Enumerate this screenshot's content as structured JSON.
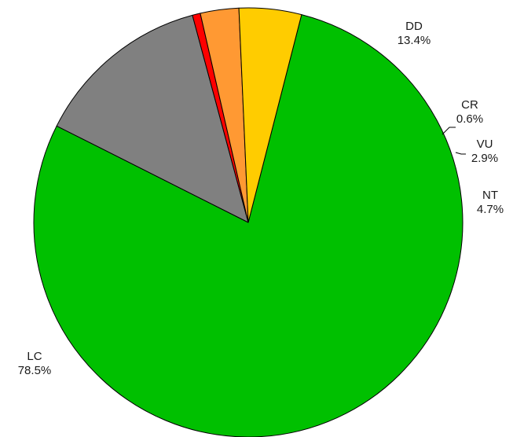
{
  "chart_data": {
    "type": "pie",
    "slices": [
      {
        "label": "LC",
        "value": 78.5,
        "value_label": "78.5%",
        "color": "#00c000"
      },
      {
        "label": "DD",
        "value": 13.4,
        "value_label": "13.4%",
        "color": "#808080"
      },
      {
        "label": "CR",
        "value": 0.6,
        "value_label": "0.6%",
        "color": "#ff0000"
      },
      {
        "label": "VU",
        "value": 2.9,
        "value_label": "2.9%",
        "color": "#ff9933"
      },
      {
        "label": "NT",
        "value": 4.7,
        "value_label": "4.7%",
        "color": "#ffcc00"
      }
    ],
    "slice_outline_color": "#000000"
  }
}
